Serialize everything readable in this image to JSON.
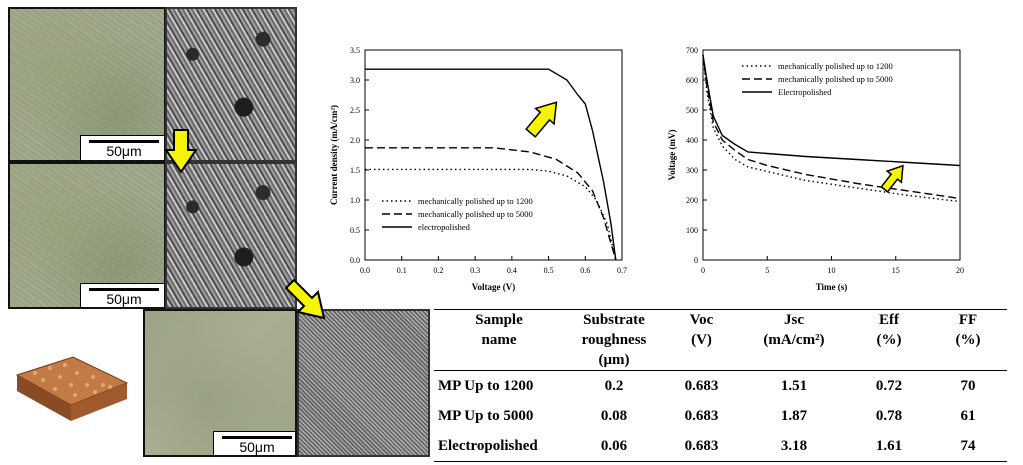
{
  "scale_bar_label": "50μm",
  "chart_data": [
    {
      "type": "line",
      "xlabel": "Voltage (V)",
      "ylabel": "Current density (mA/cm²)",
      "xlim": [
        0.0,
        0.7
      ],
      "ylim": [
        0.0,
        3.5
      ],
      "xticks": [
        "0.0",
        "0.1",
        "0.2",
        "0.3",
        "0.4",
        "0.5",
        "0.6",
        "0.7"
      ],
      "yticks": [
        "0.0",
        "0.5",
        "1.0",
        "1.5",
        "2.0",
        "2.5",
        "3.0",
        "3.5"
      ],
      "grid": false,
      "legend_position": "bottom-left",
      "series": [
        {
          "name": "mechanically polished up to 1200",
          "style": "dotted",
          "x": [
            0,
            0.45,
            0.5,
            0.55,
            0.6,
            0.63,
            0.66,
            0.683
          ],
          "y": [
            1.51,
            1.51,
            1.48,
            1.4,
            1.22,
            1.0,
            0.6,
            0.0
          ]
        },
        {
          "name": "mechanically polished up to 5000",
          "style": "dashed",
          "x": [
            0,
            0.35,
            0.45,
            0.52,
            0.58,
            0.62,
            0.65,
            0.683
          ],
          "y": [
            1.87,
            1.87,
            1.8,
            1.68,
            1.45,
            1.15,
            0.7,
            0.0
          ]
        },
        {
          "name": "electropolished",
          "style": "solid",
          "x": [
            0,
            0.5,
            0.55,
            0.58,
            0.6,
            0.62,
            0.65,
            0.67,
            0.683
          ],
          "y": [
            3.18,
            3.18,
            3.0,
            2.75,
            2.6,
            2.15,
            1.3,
            0.6,
            0.0
          ]
        }
      ],
      "arrow_color": "#f5f500"
    },
    {
      "type": "line",
      "xlabel": "Time (s)",
      "ylabel": "Voltage (mV)",
      "xlim": [
        0,
        20
      ],
      "ylim": [
        0,
        700
      ],
      "xticks": [
        "0",
        "5",
        "10",
        "15",
        "20"
      ],
      "yticks": [
        "0",
        "100",
        "200",
        "300",
        "400",
        "500",
        "600",
        "700"
      ],
      "grid": false,
      "legend_position": "top-left",
      "series": [
        {
          "name": "mechanically polished up to 1200",
          "style": "dotted",
          "x": [
            0,
            0.3,
            0.8,
            1.5,
            2.5,
            3.5,
            5,
            8,
            12,
            16,
            20
          ],
          "y": [
            683,
            560,
            440,
            380,
            335,
            310,
            295,
            265,
            240,
            215,
            195
          ]
        },
        {
          "name": "mechanically polished up to 5000",
          "style": "dashed",
          "x": [
            0,
            0.3,
            0.8,
            1.5,
            2.5,
            3.5,
            5,
            8,
            12,
            16,
            20
          ],
          "y": [
            683,
            580,
            460,
            400,
            365,
            335,
            315,
            285,
            255,
            230,
            205
          ]
        },
        {
          "name": "Electropolished",
          "style": "solid",
          "x": [
            0,
            0.3,
            0.8,
            1.5,
            2.5,
            3.5,
            5,
            8,
            12,
            16,
            20
          ],
          "y": [
            683,
            600,
            480,
            415,
            385,
            360,
            355,
            345,
            335,
            325,
            315
          ]
        }
      ],
      "arrow_color": "#f5f500"
    },
    {
      "type": "table",
      "headers": [
        [
          "Sample",
          "name"
        ],
        [
          "Substrate",
          "roughness",
          "(μm)"
        ],
        [
          "Voc",
          "(V)"
        ],
        [
          "Jsc",
          "(mA/cm²)"
        ],
        [
          "Eff",
          "(%)"
        ],
        [
          "FF",
          "(%)"
        ]
      ],
      "rows": [
        [
          "MP Up to 1200",
          "0.2",
          "0.683",
          "1.51",
          "0.72",
          "70"
        ],
        [
          "MP Up to 5000",
          "0.08",
          "0.683",
          "1.87",
          "0.78",
          "61"
        ],
        [
          "Electropolished",
          "0.06",
          "0.683",
          "3.18",
          "1.61",
          "74"
        ]
      ]
    }
  ],
  "colors": {
    "arrow": "#f5f500",
    "arrow_outline": "#000000",
    "afm_surface": "#b5653a"
  }
}
